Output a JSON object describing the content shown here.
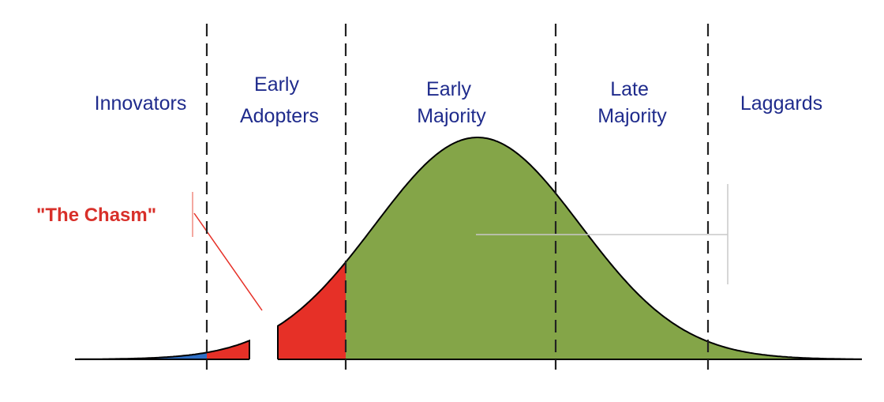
{
  "segments": [
    {
      "lines": [
        "Innovators"
      ]
    },
    {
      "lines": [
        "Early",
        "Adopters"
      ]
    },
    {
      "lines": [
        "Early",
        "Majority"
      ]
    },
    {
      "lines": [
        "Late",
        "Majority"
      ]
    },
    {
      "lines": [
        "Laggards"
      ]
    }
  ],
  "chasm_label": "\"The Chasm\"",
  "colors": {
    "innovators": "#2f6fc5",
    "early_adopters": "#e63027",
    "majority": "#84a548",
    "outline": "#000000",
    "label_text": "#1f2b8c",
    "chasm_text": "#d8302a"
  }
}
